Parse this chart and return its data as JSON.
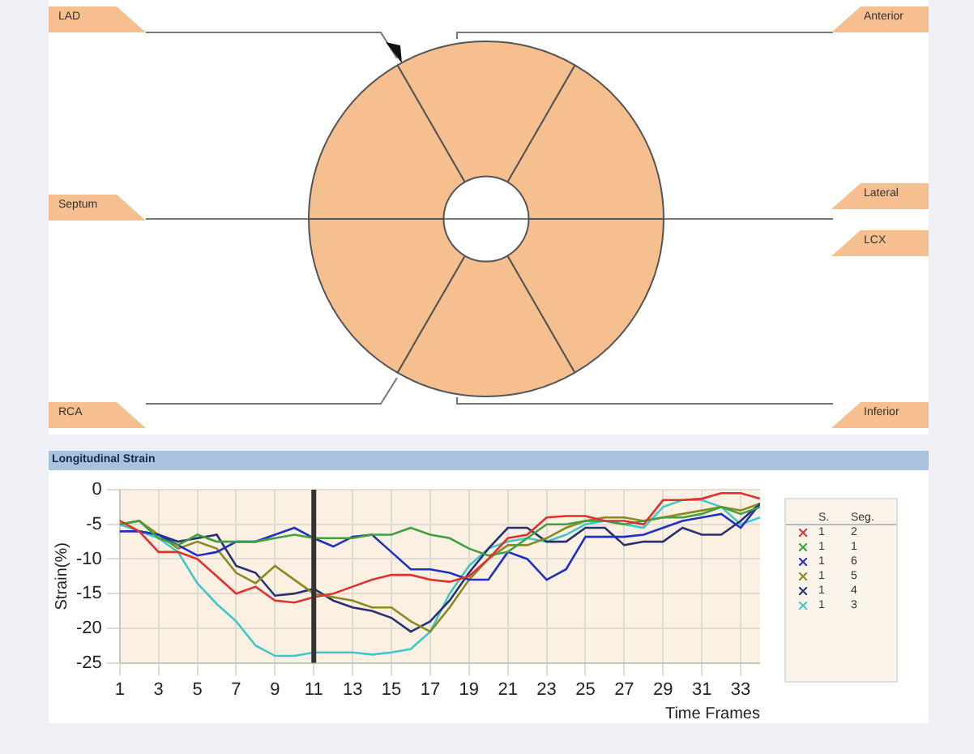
{
  "chart_data": [
    {
      "type": "donut",
      "categories": [
        null,
        null,
        null,
        null,
        null,
        null
      ],
      "values": [
        16.67,
        16.67,
        16.66,
        16.67,
        16.67,
        16.66
      ],
      "colors": [
        "#f5bf90",
        "#f5bf90",
        "#f5bf90",
        "#f5bf90",
        "#f5bf90",
        "#f5bf90"
      ],
      "legend": false,
      "annotations": [
        "LAD",
        "Anterior",
        "Septum",
        "Lateral",
        "LCX",
        "RCA",
        "Inferior"
      ]
    },
    {
      "type": "line",
      "title": "Longitudinal Strain",
      "xlabel": "Time Frames",
      "ylabel": "Strain(%)",
      "x": [
        1,
        2,
        3,
        4,
        5,
        6,
        7,
        8,
        9,
        10,
        11,
        12,
        13,
        14,
        15,
        16,
        17,
        18,
        19,
        20,
        21,
        22,
        23,
        24,
        25,
        26,
        27,
        28,
        29,
        30,
        31,
        32,
        33,
        34
      ],
      "xlim": [
        1,
        34
      ],
      "xticks": [
        1,
        3,
        5,
        7,
        9,
        11,
        13,
        15,
        17,
        19,
        21,
        23,
        25,
        27,
        29,
        31,
        33
      ],
      "ylim": [
        -25,
        0
      ],
      "yticks": [
        -25,
        -20,
        -15,
        -10,
        -5,
        0
      ],
      "grid": true,
      "ref_lines": [
        {
          "axis": "x",
          "value": 11,
          "color": "#333333"
        }
      ],
      "annotations": [
        "S.",
        "Seg.",
        "1",
        "2",
        "1",
        "1",
        "1",
        "6",
        "1",
        "5",
        "1",
        "4",
        "1",
        "3"
      ],
      "series": [
        {
          "color": "#e03030",
          "values": [
            -4.5,
            -6,
            -9,
            -9,
            -10,
            -12.5,
            -15,
            -14,
            -16,
            -16.3,
            -15.5,
            -15,
            -14,
            -13,
            -12.3,
            -12.3,
            -13,
            -13.3,
            -12.5,
            -10,
            -7,
            -6.5,
            -4,
            -3.8,
            -3.8,
            -4.5,
            -4.5,
            -5,
            -1.5,
            -1.5,
            -1.3,
            -0.5,
            -0.5,
            -1.3
          ]
        },
        {
          "color": "#40a040",
          "values": [
            -5,
            -4.5,
            -7,
            -8,
            -6.5,
            -7.5,
            -7.5,
            -7.5,
            -7,
            -6.5,
            -7,
            -7,
            -7,
            -6.5,
            -6.5,
            -5.5,
            -6.5,
            -7,
            -8.5,
            -9.5,
            -9,
            -7,
            -5,
            -5,
            -4.5,
            -4.5,
            -5,
            -4.5,
            -4,
            -4,
            -3.5,
            -2.5,
            -3.5,
            -2.5
          ]
        },
        {
          "color": "#2030c0",
          "values": [
            -6,
            -6,
            -6.5,
            -8,
            -9.5,
            -9,
            -7.5,
            -7.5,
            -6.5,
            -5.5,
            -7,
            -8.2,
            -6.8,
            -6.5,
            -9,
            -11.5,
            -11.5,
            -12,
            -13,
            -13,
            -9,
            -10,
            -13,
            -11.5,
            -6.8,
            -6.8,
            -6.8,
            -6.5,
            -5.5,
            -4.5,
            -4,
            -3.5,
            -5.5,
            -2
          ]
        },
        {
          "color": "#8a8a20",
          "values": [
            -5,
            -4.5,
            -6.5,
            -8.5,
            -7.5,
            -8.5,
            -12,
            -13.5,
            -11,
            -13,
            -15,
            -15.5,
            -16,
            -17,
            -17,
            -19,
            -20.5,
            -17,
            -13,
            -10,
            -8,
            -8,
            -7,
            -5.5,
            -4.5,
            -4,
            -4,
            -4.5,
            -4,
            -3.5,
            -3,
            -2.5,
            -3,
            -2
          ]
        },
        {
          "color": "#283070",
          "values": [
            -6,
            -6,
            -6.5,
            -7.5,
            -7,
            -6.5,
            -11,
            -12,
            -15.3,
            -15,
            -14.3,
            -16,
            -17,
            -17.5,
            -18.5,
            -20.5,
            -19,
            -16,
            -12,
            -8.5,
            -5.5,
            -5.5,
            -7.5,
            -7.5,
            -5.5,
            -5.5,
            -8,
            -7.5,
            -7.5,
            -5.5,
            -6.5,
            -6.5,
            -4.5,
            -2
          ]
        },
        {
          "color": "#40c8c8",
          "values": [
            -5,
            -6,
            -7,
            -9,
            -13.5,
            -16.5,
            -19,
            -22.5,
            -24,
            -24,
            -23.5,
            -23.5,
            -23.5,
            -23.8,
            -23.5,
            -23,
            -20.5,
            -15,
            -11,
            -8.5,
            -7.5,
            -7,
            -7.5,
            -6.5,
            -5,
            -4.5,
            -5,
            -5.5,
            -2.5,
            -1.5,
            -1.5,
            -2.5,
            -5,
            -4
          ]
        }
      ]
    }
  ]
}
